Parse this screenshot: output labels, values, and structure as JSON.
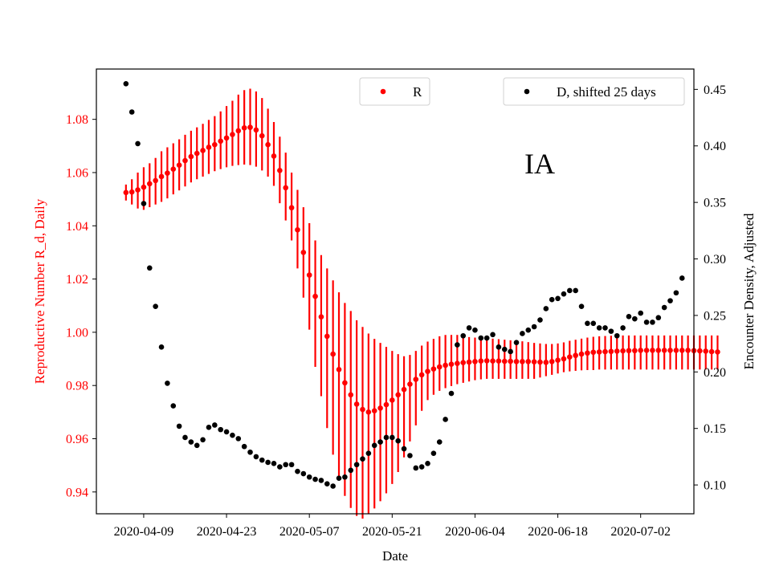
{
  "chart_data": {
    "type": "scatter",
    "annotation": "IA",
    "xlabel": "Date",
    "ylabel_left": "Reproductive Number R_d, Daily",
    "ylabel_right": "Encounter Density, Adjusted",
    "x_ticks": [
      "2020-04-09",
      "2020-04-23",
      "2020-05-07",
      "2020-05-21",
      "2020-06-04",
      "2020-06-18",
      "2020-07-02"
    ],
    "y_left_ticks": [
      "0.94",
      "0.96",
      "0.98",
      "1.00",
      "1.02",
      "1.04",
      "1.06",
      "1.08"
    ],
    "y_right_ticks": [
      "0.10",
      "0.15",
      "0.20",
      "0.25",
      "0.30",
      "0.35",
      "0.40",
      "0.45"
    ],
    "xlim": [
      "2020-04-01",
      "2020-07-11"
    ],
    "ylim_left": [
      0.9318,
      1.0989
    ],
    "ylim_right": [
      0.0745,
      0.468
    ],
    "legend_left": {
      "label": "R",
      "placement": "top-center"
    },
    "legend_right": {
      "label": "D, shifted 25 days",
      "placement": "top-right"
    },
    "colors": {
      "R": "#ff0000",
      "D": "#000000",
      "left_axis": "#ff0000"
    },
    "series": [
      {
        "name": "R",
        "x_start": "2020-04-06",
        "step_days": 1,
        "values": [
          1.0525,
          1.0527,
          1.0535,
          1.0545,
          1.0558,
          1.057,
          1.0585,
          1.0598,
          1.0613,
          1.0628,
          1.0645,
          1.066,
          1.0672,
          1.0683,
          1.0695,
          1.0705,
          1.0718,
          1.073,
          1.0743,
          1.0757,
          1.0768,
          1.077,
          1.076,
          1.0738,
          1.0705,
          1.0662,
          1.0608,
          1.0543,
          1.0468,
          1.0385,
          1.03,
          1.0215,
          1.0135,
          1.0058,
          0.9985,
          0.9918,
          0.986,
          0.981,
          0.9765,
          0.973,
          0.971,
          0.97,
          0.9705,
          0.9715,
          0.9728,
          0.9745,
          0.9765,
          0.9785,
          0.9805,
          0.9823,
          0.984,
          0.9853,
          0.9862,
          0.987,
          0.9876,
          0.988,
          0.9883,
          0.9886,
          0.9888,
          0.989,
          0.9892,
          0.9893,
          0.9892,
          0.9892,
          0.9891,
          0.9891,
          0.989,
          0.989,
          0.989,
          0.9889,
          0.9888,
          0.9887,
          0.989,
          0.9895,
          0.99,
          0.9907,
          0.9913,
          0.9918,
          0.9922,
          0.9925,
          0.9926,
          0.9927,
          0.9928,
          0.9929,
          0.993,
          0.9931,
          0.9931,
          0.9932,
          0.9932,
          0.9932,
          0.9932,
          0.9932,
          0.9932,
          0.9932,
          0.9932,
          0.9932,
          0.9931,
          0.993,
          0.9929,
          0.9927,
          0.9926
        ],
        "lower": [
          1.0495,
          1.048,
          1.0465,
          1.046,
          1.047,
          1.048,
          1.049,
          1.0503,
          1.0518,
          1.0533,
          1.0548,
          1.0563,
          1.0575,
          1.0585,
          1.0595,
          1.0605,
          1.0613,
          1.062,
          1.0625,
          1.0628,
          1.063,
          1.0628,
          1.0622,
          1.0608,
          1.0585,
          1.055,
          1.0485,
          1.042,
          1.0345,
          1.024,
          1.013,
          1.001,
          0.987,
          0.976,
          0.964,
          0.954,
          0.945,
          0.9385,
          0.934,
          0.931,
          0.93,
          0.9318,
          0.9338,
          0.9365,
          0.9395,
          0.943,
          0.9475,
          0.953,
          0.959,
          0.965,
          0.9705,
          0.9745,
          0.9765,
          0.978,
          0.979,
          0.9798,
          0.9805,
          0.981,
          0.9815,
          0.982,
          0.9823,
          0.9825,
          0.9825,
          0.9825,
          0.9825,
          0.9825,
          0.9825,
          0.9825,
          0.9825,
          0.9825,
          0.983,
          0.9835,
          0.984,
          0.9845,
          0.985,
          0.9853,
          0.9855,
          0.9857,
          0.9858,
          0.9858,
          0.986,
          0.986,
          0.986,
          0.986,
          0.986,
          0.986,
          0.986,
          0.986,
          0.986,
          0.986,
          0.986,
          0.986,
          0.986,
          0.986,
          0.986,
          0.986,
          0.986,
          0.986,
          0.986,
          0.986,
          0.986
        ],
        "upper": [
          1.0555,
          1.0575,
          1.06,
          1.062,
          1.0635,
          1.0655,
          1.068,
          1.0695,
          1.071,
          1.0725,
          1.0742,
          1.0757,
          1.077,
          1.0783,
          1.0798,
          1.0812,
          1.083,
          1.085,
          1.087,
          1.0893,
          1.091,
          1.0915,
          1.0905,
          1.088,
          1.084,
          1.079,
          1.0735,
          1.0675,
          1.06,
          1.0535,
          1.047,
          1.041,
          1.0345,
          1.029,
          1.024,
          1.0195,
          1.015,
          1.011,
          1.008,
          1.0045,
          1.002,
          0.9995,
          0.9975,
          0.996,
          0.9945,
          0.993,
          0.9918,
          0.991,
          0.9915,
          0.993,
          0.995,
          0.9965,
          0.9975,
          0.9985,
          0.999,
          0.999,
          0.999,
          0.9985,
          0.9982,
          0.998,
          0.998,
          0.9978,
          0.9976,
          0.9974,
          0.9972,
          0.997,
          0.9968,
          0.9966,
          0.9963,
          0.996,
          0.9958,
          0.9956,
          0.9956,
          0.9958,
          0.9962,
          0.9968,
          0.9972,
          0.9976,
          0.998,
          0.9983,
          0.9985,
          0.9986,
          0.9987,
          0.9988,
          0.9988,
          0.9988,
          0.9988,
          0.9988,
          0.9988,
          0.9988,
          0.9988,
          0.9988,
          0.9988,
          0.9988,
          0.9988,
          0.9988,
          0.9988,
          0.9988,
          0.9988,
          0.9988,
          0.9988
        ]
      },
      {
        "name": "D, shifted 25 days",
        "points": [
          [
            "2020-04-06",
            0.455
          ],
          [
            "2020-04-07",
            0.43
          ],
          [
            "2020-04-08",
            0.402
          ],
          [
            "2020-04-09",
            0.349
          ],
          [
            "2020-04-10",
            0.292
          ],
          [
            "2020-04-11",
            0.258
          ],
          [
            "2020-04-12",
            0.222
          ],
          [
            "2020-04-13",
            0.19
          ],
          [
            "2020-04-14",
            0.17
          ],
          [
            "2020-04-15",
            0.152
          ],
          [
            "2020-04-16",
            0.142
          ],
          [
            "2020-04-17",
            0.138
          ],
          [
            "2020-04-18",
            0.135
          ],
          [
            "2020-04-19",
            0.14
          ],
          [
            "2020-04-20",
            0.151
          ],
          [
            "2020-04-21",
            0.153
          ],
          [
            "2020-04-22",
            0.149
          ],
          [
            "2020-04-23",
            0.147
          ],
          [
            "2020-04-24",
            0.144
          ],
          [
            "2020-04-25",
            0.141
          ],
          [
            "2020-04-26",
            0.134
          ],
          [
            "2020-04-27",
            0.129
          ],
          [
            "2020-04-28",
            0.125
          ],
          [
            "2020-04-29",
            0.122
          ],
          [
            "2020-04-30",
            0.12
          ],
          [
            "2020-05-01",
            0.119
          ],
          [
            "2020-05-02",
            0.116
          ],
          [
            "2020-05-03",
            0.118
          ],
          [
            "2020-05-04",
            0.118
          ],
          [
            "2020-05-05",
            0.112
          ],
          [
            "2020-05-06",
            0.11
          ],
          [
            "2020-05-07",
            0.107
          ],
          [
            "2020-05-08",
            0.105
          ],
          [
            "2020-05-09",
            0.104
          ],
          [
            "2020-05-10",
            0.101
          ],
          [
            "2020-05-11",
            0.099
          ],
          [
            "2020-05-12",
            0.106
          ],
          [
            "2020-05-13",
            0.107
          ],
          [
            "2020-05-14",
            0.113
          ],
          [
            "2020-05-15",
            0.118
          ],
          [
            "2020-05-16",
            0.123
          ],
          [
            "2020-05-17",
            0.128
          ],
          [
            "2020-05-18",
            0.135
          ],
          [
            "2020-05-19",
            0.138
          ],
          [
            "2020-05-20",
            0.142
          ],
          [
            "2020-05-21",
            0.142
          ],
          [
            "2020-05-22",
            0.139
          ],
          [
            "2020-05-23",
            0.132
          ],
          [
            "2020-05-24",
            0.126
          ],
          [
            "2020-05-25",
            0.115
          ],
          [
            "2020-05-26",
            0.116
          ],
          [
            "2020-05-27",
            0.119
          ],
          [
            "2020-05-28",
            0.128
          ],
          [
            "2020-05-29",
            0.138
          ],
          [
            "2020-05-30",
            0.158
          ],
          [
            "2020-05-31",
            0.181
          ],
          [
            "2020-06-01",
            0.224
          ],
          [
            "2020-06-02",
            0.232
          ],
          [
            "2020-06-03",
            0.239
          ],
          [
            "2020-06-04",
            0.237
          ],
          [
            "2020-06-05",
            0.23
          ],
          [
            "2020-06-06",
            0.23
          ],
          [
            "2020-06-07",
            0.233
          ],
          [
            "2020-06-08",
            0.222
          ],
          [
            "2020-06-09",
            0.22
          ],
          [
            "2020-06-10",
            0.218
          ],
          [
            "2020-06-11",
            0.226
          ],
          [
            "2020-06-12",
            0.234
          ],
          [
            "2020-06-13",
            0.237
          ],
          [
            "2020-06-14",
            0.24
          ],
          [
            "2020-06-15",
            0.246
          ],
          [
            "2020-06-16",
            0.256
          ],
          [
            "2020-06-17",
            0.264
          ],
          [
            "2020-06-18",
            0.265
          ],
          [
            "2020-06-19",
            0.269
          ],
          [
            "2020-06-20",
            0.272
          ],
          [
            "2020-06-21",
            0.272
          ],
          [
            "2020-06-22",
            0.258
          ],
          [
            "2020-06-23",
            0.243
          ],
          [
            "2020-06-24",
            0.243
          ],
          [
            "2020-06-25",
            0.239
          ],
          [
            "2020-06-26",
            0.239
          ],
          [
            "2020-06-27",
            0.236
          ],
          [
            "2020-06-28",
            0.232
          ],
          [
            "2020-06-29",
            0.239
          ],
          [
            "2020-06-30",
            0.249
          ],
          [
            "2020-07-01",
            0.247
          ],
          [
            "2020-07-02",
            0.252
          ],
          [
            "2020-07-03",
            0.244
          ],
          [
            "2020-07-04",
            0.244
          ],
          [
            "2020-07-05",
            0.248
          ],
          [
            "2020-07-06",
            0.257
          ],
          [
            "2020-07-07",
            0.263
          ],
          [
            "2020-07-08",
            0.27
          ],
          [
            "2020-07-09",
            0.283
          ]
        ]
      }
    ]
  }
}
